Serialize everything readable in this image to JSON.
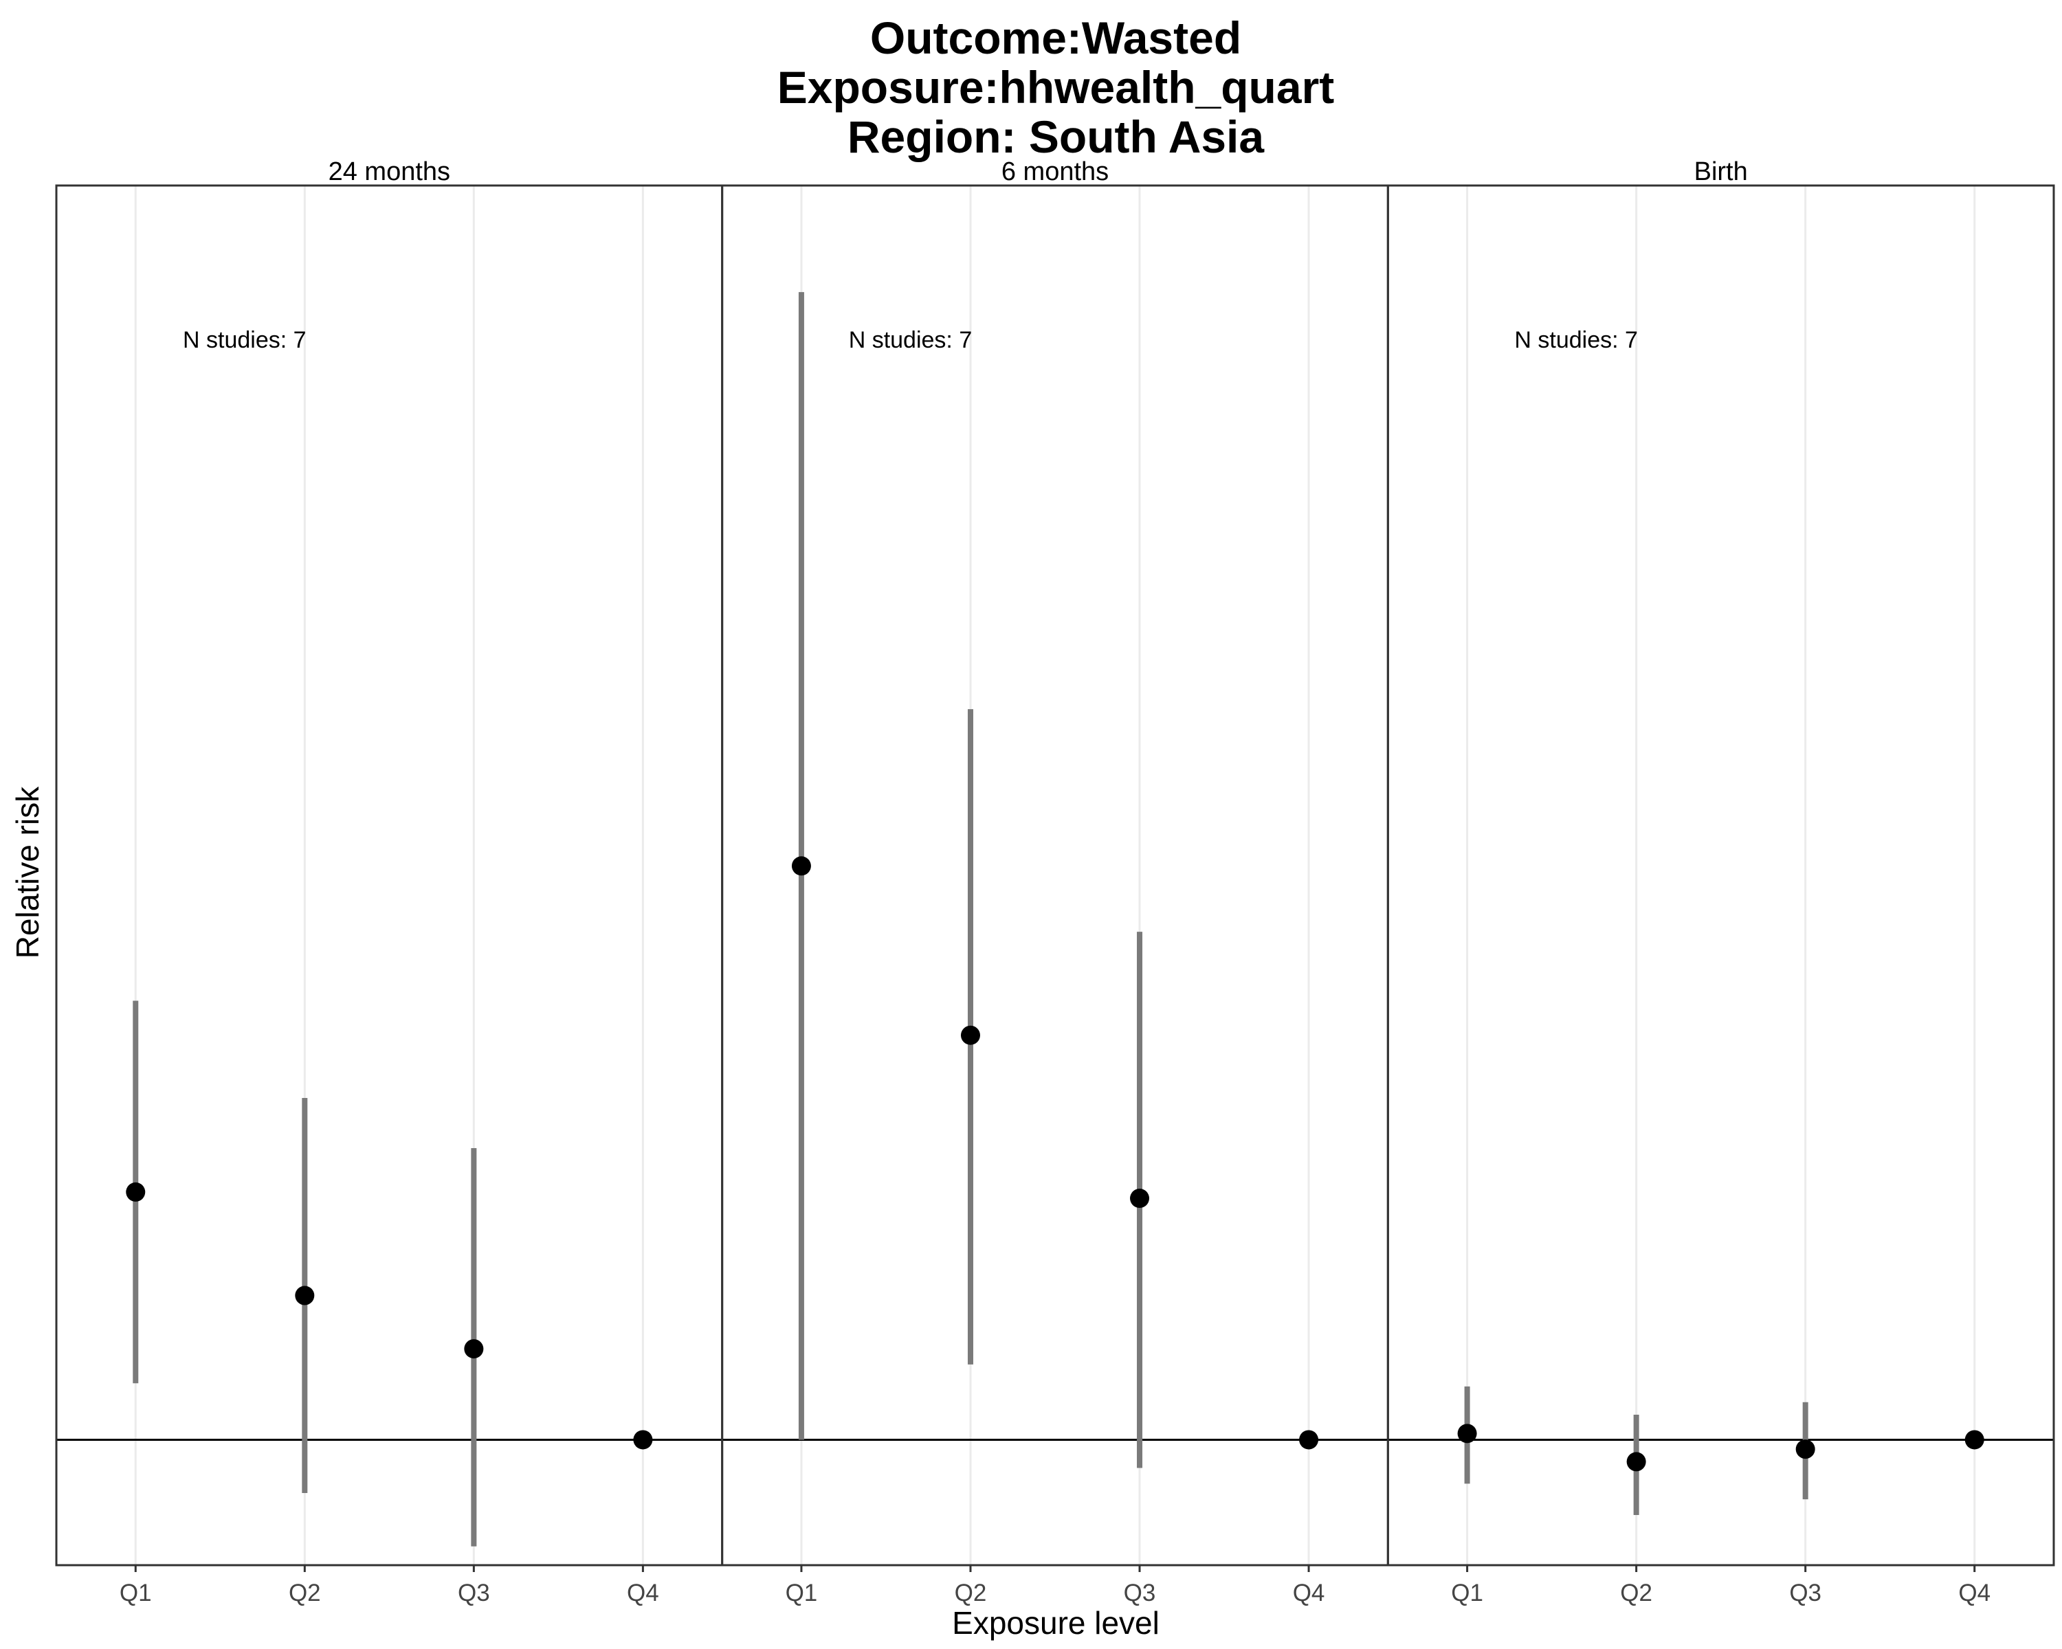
{
  "chart_data": {
    "type": "scatter",
    "title": [
      "Outcome:Wasted",
      "Exposure:hhwealth_quart",
      "Region: South Asia"
    ],
    "xlabel": "Exposure level",
    "ylabel": "Relative risk",
    "categories": [
      "Q1",
      "Q2",
      "Q3",
      "Q4"
    ],
    "reference_line": 1,
    "ylim": [
      0.6,
      5.0
    ],
    "grid": "vertical minor only",
    "y_ticks_shown": false,
    "colors": {
      "point": "#000000",
      "interval": "#7a7a7a",
      "reference": "#000000",
      "grid": "#ebebeb"
    },
    "panels": [
      {
        "label": "24 months",
        "annotation": "N studies: 7",
        "points": [
          {
            "x": "Q1",
            "estimate": 1.79,
            "lower": 1.18,
            "upper": 2.4
          },
          {
            "x": "Q2",
            "estimate": 1.46,
            "lower": 0.83,
            "upper": 2.09
          },
          {
            "x": "Q3",
            "estimate": 1.29,
            "lower": 0.66,
            "upper": 1.93
          },
          {
            "x": "Q4",
            "estimate": 1.0,
            "lower": 1.0,
            "upper": 1.0
          }
        ]
      },
      {
        "label": "6 months",
        "annotation": "N studies: 7",
        "points": [
          {
            "x": "Q1",
            "estimate": 2.83,
            "lower": 1.0,
            "upper": 4.66
          },
          {
            "x": "Q2",
            "estimate": 2.29,
            "lower": 1.24,
            "upper": 3.33
          },
          {
            "x": "Q3",
            "estimate": 1.77,
            "lower": 0.91,
            "upper": 2.62
          },
          {
            "x": "Q4",
            "estimate": 1.0,
            "lower": 1.0,
            "upper": 1.0
          }
        ]
      },
      {
        "label": "Birth",
        "annotation": "N studies: 7",
        "points": [
          {
            "x": "Q1",
            "estimate": 1.02,
            "lower": 0.86,
            "upper": 1.17
          },
          {
            "x": "Q2",
            "estimate": 0.93,
            "lower": 0.76,
            "upper": 1.08
          },
          {
            "x": "Q3",
            "estimate": 0.97,
            "lower": 0.81,
            "upper": 1.12
          },
          {
            "x": "Q4",
            "estimate": 1.0,
            "lower": 1.0,
            "upper": 1.0
          }
        ]
      }
    ]
  }
}
